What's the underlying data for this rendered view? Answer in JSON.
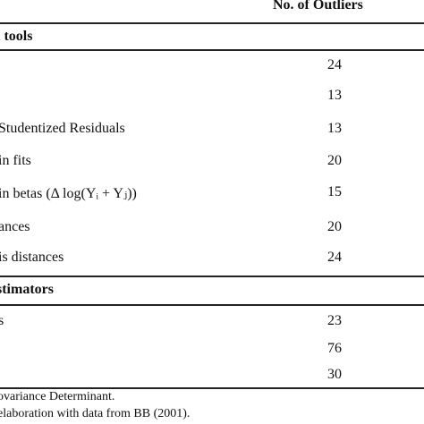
{
  "header": {
    "col_outliers": "No. of Outliers"
  },
  "sections": [
    {
      "title": "l tools",
      "rows": [
        {
          "label": "",
          "value": "24"
        },
        {
          "label": "",
          "value": "13"
        },
        {
          "label": "Studentized Residuals",
          "value": "13"
        },
        {
          "label": "in fits",
          "value": "20"
        },
        {
          "label": "in betas (Δ log(Yᵢ + Yⱼ))",
          "value": "15"
        },
        {
          "label": "ances",
          "value": "20"
        },
        {
          "label": "is distances",
          "value": "24"
        }
      ]
    },
    {
      "title": "stimators",
      "rows": [
        {
          "label": "s",
          "value": "23"
        },
        {
          "label": "",
          "value": "76"
        },
        {
          "label": "",
          "value": "30"
        }
      ]
    }
  ],
  "notes": [
    "ovariance Determinant.",
    "elaboration with data from BB (2001)."
  ]
}
